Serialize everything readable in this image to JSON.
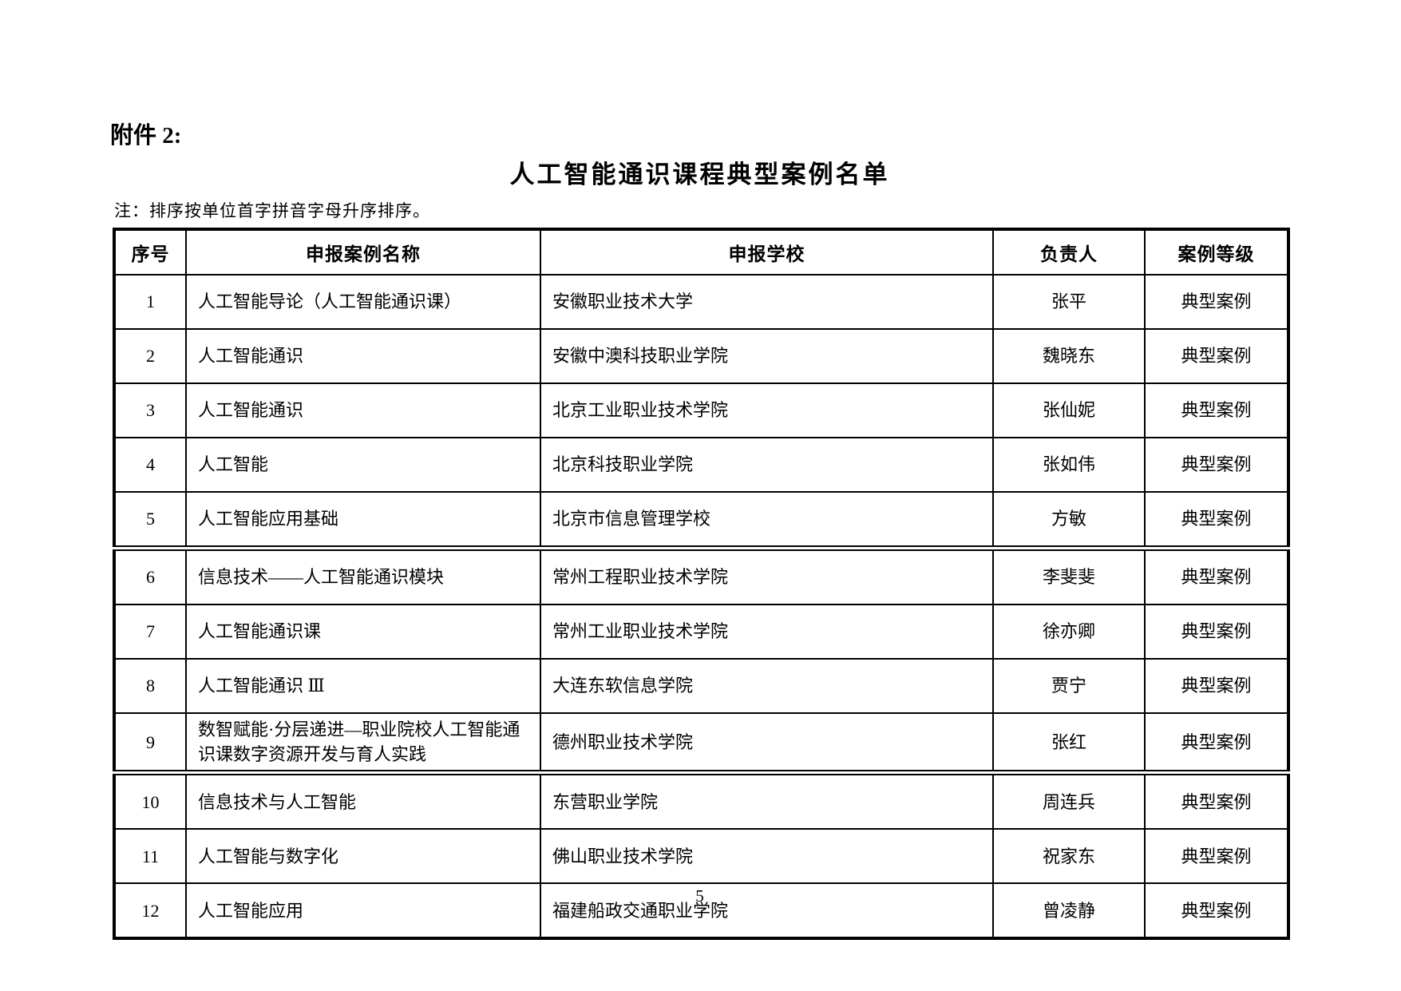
{
  "page": {
    "attachment_label": "附件 2:",
    "title": "人工智能通识课程典型案例名单",
    "note": "注：排序按单位首字拼音字母升序排序。",
    "page_number": "5"
  },
  "colors": {
    "text": "#000000",
    "background": "#ffffff",
    "border": "#000000"
  },
  "table": {
    "columns": [
      "序号",
      "申报案例名称",
      "申报学校",
      "负责人",
      "案例等级"
    ],
    "rows": [
      {
        "no": "1",
        "case_name": "人工智能导论（人工智能通识课）",
        "school": "安徽职业技术大学",
        "leader": "张平",
        "level": "典型案例"
      },
      {
        "no": "2",
        "case_name": "人工智能通识",
        "school": "安徽中澳科技职业学院",
        "leader": "魏晓东",
        "level": "典型案例"
      },
      {
        "no": "3",
        "case_name": "人工智能通识",
        "school": "北京工业职业技术学院",
        "leader": "张仙妮",
        "level": "典型案例"
      },
      {
        "no": "4",
        "case_name": "人工智能",
        "school": "北京科技职业学院",
        "leader": "张如伟",
        "level": "典型案例"
      },
      {
        "no": "5",
        "case_name": "人工智能应用基础",
        "school": "北京市信息管理学校",
        "leader": "方敏",
        "level": "典型案例"
      },
      {
        "no": "6",
        "case_name": "信息技术——人工智能通识模块",
        "school": "常州工程职业技术学院",
        "leader": "李斐斐",
        "level": "典型案例"
      },
      {
        "no": "7",
        "case_name": "人工智能通识课",
        "school": "常州工业职业技术学院",
        "leader": "徐亦卿",
        "level": "典型案例"
      },
      {
        "no": "8",
        "case_name": "人工智能通识 Ⅲ",
        "school": "大连东软信息学院",
        "leader": "贾宁",
        "level": "典型案例"
      },
      {
        "no": "9",
        "case_name": "数智赋能·分层递进—职业院校人工智能通识课数字资源开发与育人实践",
        "school": "德州职业技术学院",
        "leader": "张红",
        "level": "典型案例"
      },
      {
        "no": "10",
        "case_name": "信息技术与人工智能",
        "school": "东营职业学院",
        "leader": "周连兵",
        "level": "典型案例"
      },
      {
        "no": "11",
        "case_name": "人工智能与数字化",
        "school": "佛山职业技术学院",
        "leader": "祝家东",
        "level": "典型案例"
      },
      {
        "no": "12",
        "case_name": "人工智能应用",
        "school": "福建船政交通职业学院",
        "leader": "曾凌静",
        "level": "典型案例"
      }
    ]
  }
}
